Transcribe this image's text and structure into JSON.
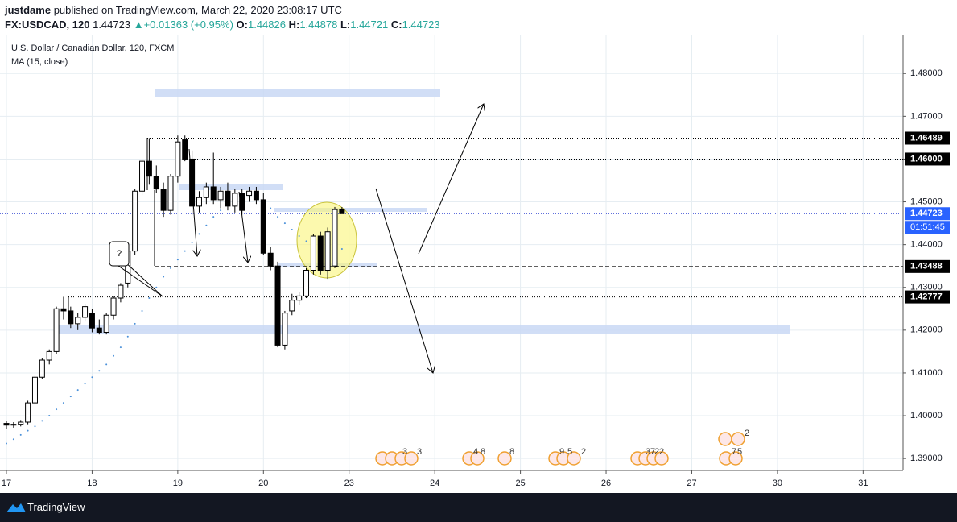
{
  "header": {
    "author": "justdame",
    "published": "published on TradingView.com, March 22, 2020 23:08:17 UTC",
    "symbol": "FX:USDCAD, 120",
    "last": "1.44723",
    "arrow": "▲",
    "change": "+0.01363 (+0.95%)",
    "ohlc": [
      {
        "label": "O:",
        "value": "1.44826"
      },
      {
        "label": "H:",
        "value": "1.44878"
      },
      {
        "label": "L:",
        "value": "1.44721"
      },
      {
        "label": "C:",
        "value": "1.44723"
      }
    ]
  },
  "chart_data": {
    "type": "candlestick",
    "title": "U.S. Dollar / Canadian Dollar, 120, FXCM",
    "indicator": "MA (15, close)",
    "open": [
      1.3982,
      1.3978,
      1.398,
      1.3985,
      1.403,
      1.409,
      1.413,
      1.415,
      1.425,
      1.4245,
      1.4215,
      1.423,
      1.424,
      1.4205,
      1.4195,
      1.4235,
      1.4275,
      1.431,
      1.4385,
      1.4525,
      1.4595,
      1.456,
      1.453,
      1.448,
      1.456,
      1.4645,
      1.46,
      1.449,
      1.451,
      1.4535,
      1.4505,
      1.4525,
      1.449,
      1.452,
      1.4515,
      1.4525,
      1.4505,
      1.438,
      1.435,
      1.4165,
      1.4245,
      1.427,
      1.428,
      1.434,
      1.442,
      1.434,
      1.435,
      1.44826
    ],
    "high": [
      1.3988,
      1.3985,
      1.399,
      1.4035,
      1.4095,
      1.4135,
      1.4155,
      1.4255,
      1.4278,
      1.4255,
      1.424,
      1.4262,
      1.425,
      1.4225,
      1.424,
      1.428,
      1.431,
      1.44,
      1.453,
      1.46,
      1.4649,
      1.4585,
      1.4545,
      1.4565,
      1.4655,
      1.4655,
      1.462,
      1.4525,
      1.4545,
      1.4615,
      1.4535,
      1.4545,
      1.453,
      1.453,
      1.4535,
      1.4535,
      1.452,
      1.4395,
      1.436,
      1.4245,
      1.4285,
      1.429,
      1.4345,
      1.4425,
      1.443,
      1.444,
      1.4488,
      1.44878
    ],
    "low": [
      1.397,
      1.3972,
      1.3975,
      1.398,
      1.4025,
      1.4085,
      1.412,
      1.4145,
      1.4225,
      1.4205,
      1.42,
      1.422,
      1.4195,
      1.419,
      1.419,
      1.4225,
      1.4265,
      1.43,
      1.4375,
      1.4515,
      1.454,
      1.452,
      1.4465,
      1.447,
      1.4545,
      1.4595,
      1.447,
      1.4475,
      1.4495,
      1.4495,
      1.4485,
      1.448,
      1.4475,
      1.447,
      1.45,
      1.4495,
      1.4375,
      1.434,
      1.416,
      1.4155,
      1.4235,
      1.426,
      1.4275,
      1.433,
      1.433,
      1.432,
      1.4345,
      1.44721
    ],
    "close": [
      1.3978,
      1.398,
      1.3985,
      1.403,
      1.409,
      1.413,
      1.415,
      1.425,
      1.4245,
      1.4215,
      1.423,
      1.4255,
      1.4205,
      1.4195,
      1.4235,
      1.4275,
      1.4305,
      1.4385,
      1.4525,
      1.4595,
      1.456,
      1.453,
      1.448,
      1.456,
      1.464,
      1.46,
      1.449,
      1.451,
      1.4535,
      1.4505,
      1.4525,
      1.449,
      1.452,
      1.448,
      1.4525,
      1.4505,
      1.438,
      1.435,
      1.4165,
      1.424,
      1.427,
      1.428,
      1.434,
      1.442,
      1.434,
      1.443,
      1.4482,
      1.44723
    ],
    "ma": {
      "name": "MA (15, close)",
      "color": "#4a90d9",
      "values": [
        1.3935,
        1.3945,
        1.3955,
        1.3965,
        1.3975,
        1.3988,
        1.4,
        1.4015,
        1.403,
        1.4045,
        1.406,
        1.4075,
        1.409,
        1.4105,
        1.412,
        1.414,
        1.416,
        1.4185,
        1.4215,
        1.4245,
        1.4275,
        1.43,
        1.4325,
        1.4345,
        1.4365,
        1.4385,
        1.4405,
        1.4425,
        1.4445,
        1.4465,
        1.448,
        1.4495,
        1.4505,
        1.4512,
        1.4515,
        1.451,
        1.45,
        1.4485,
        1.4465,
        1.445,
        1.4435,
        1.442,
        1.4408,
        1.44,
        1.4392,
        1.4388,
        1.4387,
        1.439
      ]
    },
    "xlim": [
      0,
      125.6
    ],
    "xticks": [
      {
        "value": 0,
        "label": "17"
      },
      {
        "value": 12,
        "label": "18"
      },
      {
        "value": 24,
        "label": "19"
      },
      {
        "value": 36,
        "label": "20"
      },
      {
        "value": 48,
        "label": "23"
      },
      {
        "value": 60,
        "label": "24"
      },
      {
        "value": 72,
        "label": "25"
      },
      {
        "value": 84,
        "label": "26"
      },
      {
        "value": 96,
        "label": "27"
      },
      {
        "value": 108,
        "label": "30"
      },
      {
        "value": 120,
        "label": "31"
      }
    ],
    "ylim": [
      1.3872,
      1.4889
    ],
    "yticks": [
      {
        "value": 1.39,
        "label": "1.39000"
      },
      {
        "value": 1.4,
        "label": "1.40000"
      },
      {
        "value": 1.41,
        "label": "1.41000"
      },
      {
        "value": 1.42,
        "label": "1.42000"
      },
      {
        "value": 1.43,
        "label": "1.43000"
      },
      {
        "value": 1.44,
        "label": "1.44000"
      },
      {
        "value": 1.45,
        "label": "1.45000"
      },
      {
        "value": 1.46,
        "label": "1.46000"
      },
      {
        "value": 1.47,
        "label": "1.47000"
      },
      {
        "value": 1.48,
        "label": "1.48000"
      }
    ],
    "grid": true,
    "price_lines": [
      {
        "value": 1.46489,
        "label": "1.46489",
        "style": "dotted",
        "color": "#000000"
      },
      {
        "value": 1.46,
        "label": "1.46000",
        "style": "dotted",
        "color": "#000000"
      },
      {
        "value": 1.44723,
        "label": "1.44723",
        "style": "dotted",
        "color": "#2a3fd1"
      },
      {
        "value": 1.43488,
        "label": "1.43488",
        "style": "dashed",
        "color": "#000000"
      },
      {
        "value": 1.42777,
        "label": "1.42777",
        "style": "dotted",
        "color": "#000000"
      }
    ],
    "countdown": "01:51:45",
    "annotation": "?",
    "event_labels": [
      "3",
      "3",
      "4",
      "8",
      "8",
      "9",
      "5",
      "2",
      "3",
      "7",
      "2",
      "2",
      "2",
      "7",
      "5"
    ]
  },
  "footer": {
    "brand": "TradingView"
  }
}
